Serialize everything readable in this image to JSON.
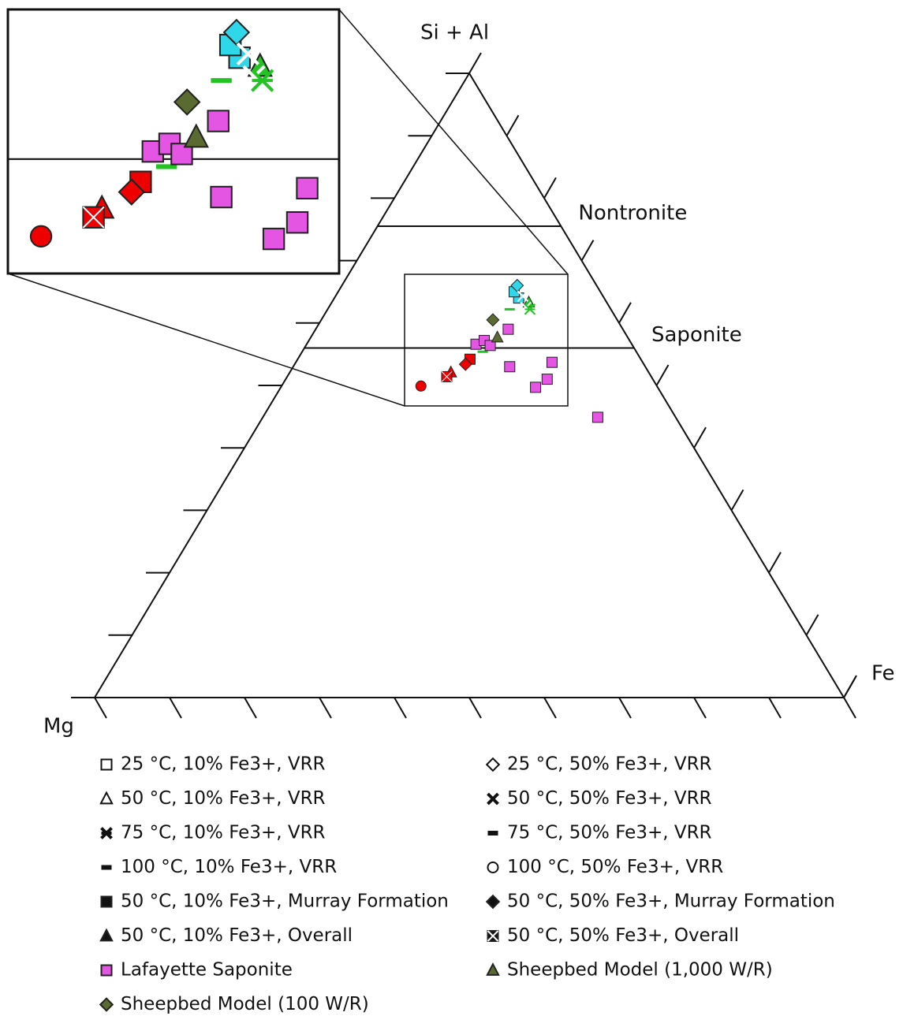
{
  "chart_data": {
    "type": "ternary",
    "axis_labels": {
      "top": "Si + Al",
      "left": "Mg",
      "right": "Fe"
    },
    "ticks": [
      0,
      0.1,
      0.2,
      0.3,
      0.4,
      0.5,
      0.6,
      0.7,
      0.8,
      0.9,
      1
    ],
    "boundaries": [
      {
        "label": "Nontronite",
        "si_al": 0.755
      },
      {
        "label": "Saponite",
        "si_al": 0.56
      }
    ],
    "series": [
      {
        "name": "25 °C, 10% Fe3+, VRR",
        "marker": "square",
        "color": "#2fd8e8",
        "legend_color": "none",
        "si_al": [
          0.64,
          0.65
        ],
        "fe": [
          0.246,
          0.235
        ]
      },
      {
        "name": "25 °C, 50% Fe3+, VRR",
        "marker": "diamond",
        "color": "#2fd8e8",
        "legend_color": "none",
        "si_al": [
          0.66
        ],
        "fe": [
          0.234
        ]
      },
      {
        "name": "50 °C, 10% Fe3+, VRR",
        "marker": "triangle",
        "color": "#22c322",
        "legend_color": "none",
        "si_al": [
          0.633
        ],
        "fe": [
          0.263
        ]
      },
      {
        "name": "50 °C, 50% Fe3+, VRR",
        "marker": "x",
        "color": "#ffffff",
        "legend_color": "#111111",
        "si_al": [
          0.643,
          0.625
        ],
        "fe": [
          0.25,
          0.263
        ]
      },
      {
        "name": "75 °C, 10% Fe3+, VRR",
        "marker": "asterisk",
        "color": "#22c322",
        "legend_color": "#111111",
        "si_al": [
          0.622
        ],
        "fe": [
          0.27
        ]
      },
      {
        "name": "75 °C, 50% Fe3+, VRR",
        "marker": "dash",
        "color": "#22c322",
        "legend_color": "#111111",
        "si_al": [
          0.622
        ],
        "fe": [
          0.243
        ]
      },
      {
        "name": "100 °C, 10% Fe3+, VRR",
        "marker": "dash",
        "color": "#22c322",
        "legend_color": "#111111",
        "si_al": [
          0.554
        ],
        "fe": [
          0.241
        ]
      },
      {
        "name": "100 °C, 50% Fe3+, VRR",
        "marker": "circle",
        "color": "#ee0000",
        "legend_color": "none",
        "si_al": [
          0.499
        ],
        "fe": [
          0.186
        ]
      },
      {
        "name": "50 °C, 10% Fe3+, Murray Formation",
        "marker": "square",
        "color": "#ee0000",
        "legend_color": "#111111",
        "si_al": [
          0.542
        ],
        "fe": [
          0.23
        ]
      },
      {
        "name": "50 °C, 50% Fe3+, Murray Formation",
        "marker": "diamond",
        "color": "#ee0000",
        "legend_color": "#111111",
        "si_al": [
          0.534
        ],
        "fe": [
          0.228
        ]
      },
      {
        "name": "50 °C, 10% Fe3+, Overall",
        "marker": "triangle",
        "color": "#ee0000",
        "legend_color": "#111111",
        "si_al": [
          0.521
        ],
        "fe": [
          0.215
        ]
      },
      {
        "name": "50 °C, 50% Fe3+, Overall",
        "marker": "boxx",
        "color": "#ee0000",
        "legend_color": "#111111",
        "si_al": [
          0.514
        ],
        "fe": [
          0.213
        ]
      },
      {
        "name": "Lafayette Saponite",
        "marker": "square",
        "color": "#e455e4",
        "legend_color": "#e455e4",
        "si_al": [
          0.449,
          0.53,
          0.537,
          0.51,
          0.497,
          0.566,
          0.572,
          0.564,
          0.59
        ],
        "fe": [
          0.447,
          0.289,
          0.342,
          0.349,
          0.34,
          0.226,
          0.234,
          0.246,
          0.257
        ]
      },
      {
        "name": "Sheepbed Model (1,000 W/R)",
        "marker": "triangle",
        "color": "#5a6b32",
        "legend_color": "#5a6b32",
        "si_al": [
          0.577
        ],
        "fe": [
          0.249
        ]
      },
      {
        "name": "Sheepbed Model (100 W/R)",
        "marker": "diamond",
        "color": "#5a6b32",
        "legend_color": "#5a6b32",
        "si_al": [
          0.605
        ],
        "fe": [
          0.229
        ]
      }
    ]
  }
}
